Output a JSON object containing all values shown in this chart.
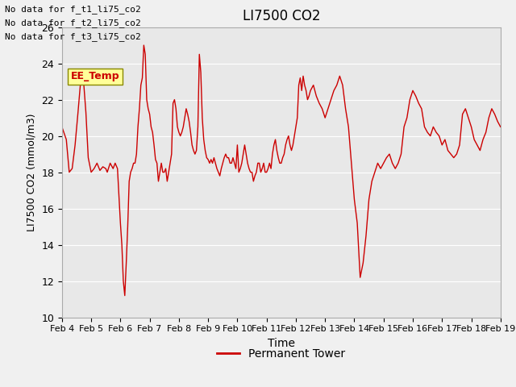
{
  "title": "LI7500 CO2",
  "ylabel": "LI7500 CO2 (mmol/m3)",
  "xlabel": "Time",
  "ylim": [
    10,
    26
  ],
  "yticks": [
    10,
    12,
    14,
    16,
    18,
    20,
    22,
    24,
    26
  ],
  "xlabels": [
    "Feb 4",
    "Feb 5",
    "Feb 6",
    "Feb 7",
    "Feb 8",
    "Feb 9",
    "Feb 10",
    "Feb 11",
    "Feb 12",
    "Feb 13",
    "Feb 14",
    "Feb 15",
    "Feb 16",
    "Feb 17",
    "Feb 18",
    "Feb 19"
  ],
  "line_color": "#cc0000",
  "bg_color": "#e8e8e8",
  "no_data_texts": [
    "No data for f_t1_li75_co2",
    "No data for f_t2_li75_co2",
    "No data for f_t3_li75_co2"
  ],
  "legend_label": "Permanent Tower",
  "legend_label_ee": "EE_Temp",
  "x": [
    0,
    0.15,
    0.25,
    0.35,
    0.45,
    0.55,
    0.65,
    0.7,
    0.75,
    0.82,
    0.9,
    1.0,
    1.1,
    1.2,
    1.3,
    1.4,
    1.5,
    1.55,
    1.65,
    1.75,
    1.82,
    1.9,
    2.0,
    2.05,
    2.1,
    2.15,
    2.2,
    2.25,
    2.3,
    2.35,
    2.4,
    2.45,
    2.5,
    2.55,
    2.6,
    2.65,
    2.7,
    2.75,
    2.8,
    2.85,
    2.9,
    2.95,
    3.0,
    3.05,
    3.1,
    3.15,
    3.2,
    3.25,
    3.3,
    3.35,
    3.4,
    3.45,
    3.5,
    3.55,
    3.6,
    3.65,
    3.7,
    3.75,
    3.8,
    3.85,
    3.9,
    3.95,
    4.0,
    4.05,
    4.1,
    4.15,
    4.2,
    4.25,
    4.3,
    4.35,
    4.4,
    4.45,
    4.5,
    4.55,
    4.6,
    4.65,
    4.7,
    4.75,
    4.8,
    4.85,
    4.9,
    4.95,
    5.0,
    5.05,
    5.1,
    5.15,
    5.2,
    5.25,
    5.3,
    5.35,
    5.4,
    5.45,
    5.5,
    5.55,
    5.6,
    5.65,
    5.7,
    5.75,
    5.8,
    5.85,
    5.9,
    5.95,
    6.0,
    6.05,
    6.1,
    6.15,
    6.2,
    6.25,
    6.3,
    6.35,
    6.4,
    6.45,
    6.5,
    6.55,
    6.6,
    6.65,
    6.7,
    6.75,
    6.8,
    6.85,
    6.9,
    6.95,
    7.0,
    7.05,
    7.1,
    7.15,
    7.2,
    7.25,
    7.3,
    7.35,
    7.4,
    7.45,
    7.5,
    7.55,
    7.6,
    7.65,
    7.7,
    7.75,
    7.8,
    7.85,
    7.9,
    7.95,
    8.0,
    8.05,
    8.1,
    8.15,
    8.2,
    8.25,
    8.3,
    8.35,
    8.4,
    8.45,
    8.5,
    8.6,
    8.7,
    8.8,
    8.9,
    9.0,
    9.1,
    9.2,
    9.3,
    9.4,
    9.5,
    9.6,
    9.7,
    9.8,
    9.9,
    10.0,
    10.1,
    10.2,
    10.3,
    10.4,
    10.5,
    10.6,
    10.7,
    10.8,
    10.9,
    11.0,
    11.1,
    11.2,
    11.3,
    11.4,
    11.5,
    11.6,
    11.7,
    11.8,
    11.9,
    12.0,
    12.1,
    12.2,
    12.3,
    12.4,
    12.5,
    12.6,
    12.7,
    12.8,
    12.9,
    13.0,
    13.1,
    13.2,
    13.3,
    13.4,
    13.5,
    13.6,
    13.7,
    13.8,
    13.9,
    14.0,
    14.1,
    14.2,
    14.3,
    14.4,
    14.5,
    14.6,
    14.7,
    14.8,
    14.9,
    15.0
  ],
  "y": [
    20.5,
    19.8,
    18.0,
    18.2,
    19.5,
    21.3,
    23.2,
    23.1,
    22.8,
    21.3,
    18.8,
    18.0,
    18.2,
    18.5,
    18.1,
    18.3,
    18.2,
    18.0,
    18.5,
    18.2,
    18.5,
    18.2,
    15.2,
    14.0,
    12.0,
    11.2,
    13.0,
    15.0,
    17.5,
    18.0,
    18.2,
    18.5,
    18.5,
    19.0,
    20.5,
    21.5,
    22.8,
    23.2,
    25.0,
    24.5,
    22.0,
    21.5,
    21.2,
    20.5,
    20.2,
    19.5,
    18.7,
    18.5,
    17.5,
    18.0,
    18.5,
    18.0,
    18.0,
    18.2,
    17.5,
    18.0,
    18.5,
    19.0,
    21.8,
    22.0,
    21.5,
    20.5,
    20.2,
    20.0,
    20.2,
    20.5,
    21.0,
    21.5,
    21.2,
    20.8,
    20.2,
    19.5,
    19.2,
    19.0,
    19.2,
    20.5,
    24.5,
    23.5,
    21.0,
    19.8,
    19.2,
    18.8,
    18.7,
    18.5,
    18.7,
    18.5,
    18.8,
    18.5,
    18.2,
    18.0,
    17.8,
    18.2,
    18.5,
    18.8,
    19.0,
    18.8,
    18.8,
    18.5,
    18.5,
    18.8,
    18.5,
    18.2,
    19.5,
    18.0,
    18.2,
    18.5,
    19.0,
    19.5,
    19.0,
    18.5,
    18.2,
    18.0,
    18.0,
    17.5,
    17.8,
    18.0,
    18.5,
    18.5,
    18.0,
    18.2,
    18.5,
    18.0,
    18.0,
    18.2,
    18.5,
    18.2,
    19.0,
    19.5,
    19.8,
    19.2,
    18.8,
    18.5,
    18.5,
    18.8,
    19.0,
    19.5,
    19.8,
    20.0,
    19.5,
    19.2,
    19.5,
    20.0,
    20.5,
    21.0,
    22.8,
    23.2,
    22.5,
    23.3,
    22.8,
    22.5,
    22.0,
    22.2,
    22.5,
    22.8,
    22.2,
    21.8,
    21.5,
    21.0,
    21.5,
    22.0,
    22.5,
    22.8,
    23.3,
    22.8,
    21.5,
    20.5,
    18.5,
    16.5,
    15.2,
    12.2,
    13.0,
    14.5,
    16.5,
    17.5,
    18.0,
    18.5,
    18.2,
    18.5,
    18.8,
    19.0,
    18.5,
    18.2,
    18.5,
    19.0,
    20.5,
    21.0,
    22.0,
    22.5,
    22.2,
    21.8,
    21.5,
    20.5,
    20.2,
    20.0,
    20.5,
    20.2,
    20.0,
    19.5,
    19.8,
    19.2,
    19.0,
    18.8,
    19.0,
    19.5,
    21.2,
    21.5,
    21.0,
    20.5,
    19.8,
    19.5,
    19.2,
    19.8,
    20.2,
    21.0,
    21.5,
    21.2,
    20.8,
    20.5
  ]
}
